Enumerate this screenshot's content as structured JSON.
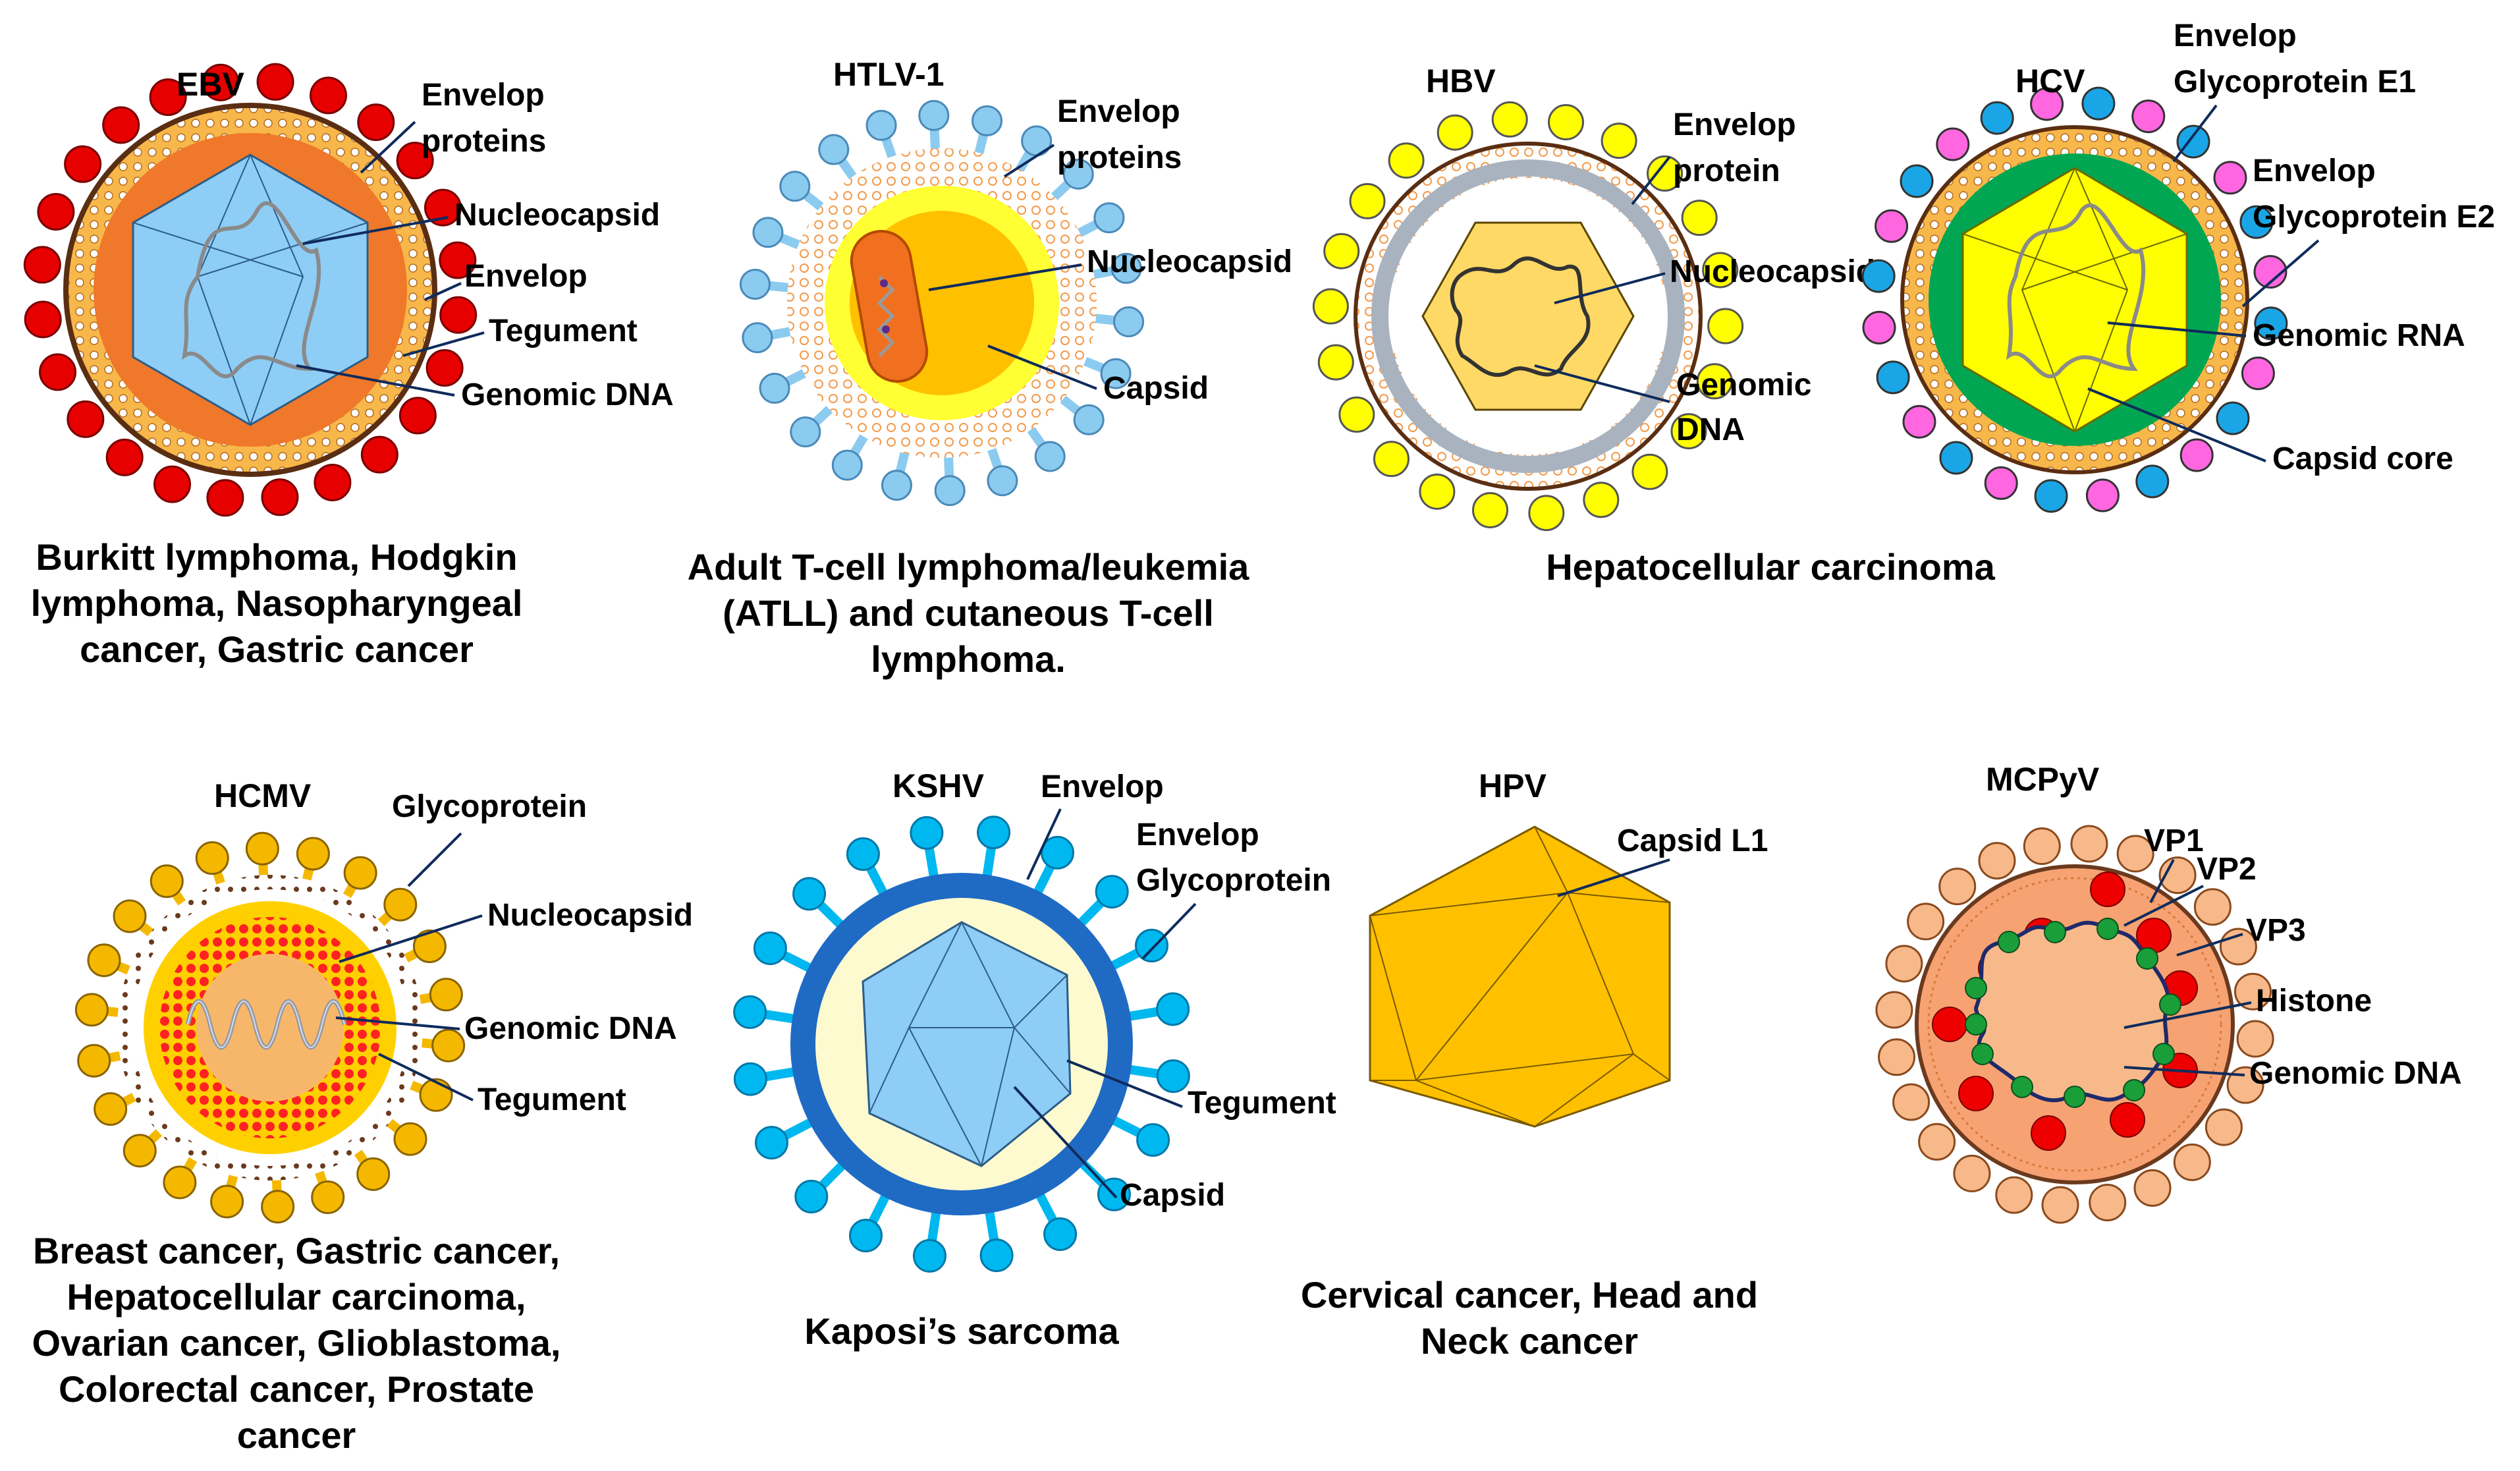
{
  "panels": [
    {
      "key": "ebv",
      "title": "EBV",
      "labels": [
        "Envelop",
        "proteins",
        "Nucleocapsid",
        "Envelop",
        "Tegument",
        "Genomic DNA"
      ],
      "caption": [
        "Burkitt lymphoma, Hodgkin",
        "lymphoma, Nasopharyngeal",
        "cancer, Gastric cancer"
      ]
    },
    {
      "key": "htlv1",
      "title": "HTLV-1",
      "labels": [
        "Envelop",
        "proteins",
        "Nucleocapsid",
        "Capsid"
      ],
      "caption": [
        "Adult T-cell lymphoma/leukemia",
        "(ATLL) and cutaneous T-cell",
        "lymphoma."
      ]
    },
    {
      "key": "hbv",
      "title": "HBV",
      "labels": [
        "Envelop",
        "protein",
        "Nucleocapsid",
        "Genomic",
        "DNA"
      ],
      "caption": [
        "Hepatocellular carcinoma"
      ]
    },
    {
      "key": "hcv",
      "title": "HCV",
      "labels": [
        "Envelop",
        "Glycoprotein E1",
        "Envelop",
        "Glycoprotein E2",
        "Genomic RNA",
        "Capsid core"
      ],
      "caption": []
    },
    {
      "key": "hcmv",
      "title": "HCMV",
      "labels": [
        "Glycoprotein",
        "Nucleocapsid",
        "Genomic DNA",
        "Tegument"
      ],
      "caption": [
        "Breast cancer, Gastric cancer,",
        "Hepatocellular carcinoma,",
        "Ovarian cancer, Glioblastoma,",
        "Colorectal cancer, Prostate",
        "cancer"
      ]
    },
    {
      "key": "kshv",
      "title": "KSHV",
      "labels": [
        "Envelop",
        "Envelop",
        "Glycoprotein",
        "Tegument",
        "Capsid"
      ],
      "caption": [
        "Kaposi’s sarcoma"
      ]
    },
    {
      "key": "hpv",
      "title": "HPV",
      "labels": [
        "Capsid L1"
      ],
      "caption": [
        "Cervical cancer, Head and",
        "Neck cancer"
      ]
    },
    {
      "key": "mcpyv",
      "title": "MCPyV",
      "labels": [
        "VP1",
        "VP2",
        "VP3",
        "Histone",
        "Genomic DNA"
      ],
      "caption": []
    }
  ],
  "colors": {
    "ebv_spikes": "#e60000",
    "ebv_envelope": "#f7b74a",
    "ebv_tegument": "#f0782a",
    "nucleocapsid_blue": "#8ecdf5",
    "htlv_spikes": "#8ccbf0",
    "htlv_capsid": "#ffff33",
    "hbv_spikes": "#ffff00",
    "hbv_ring": "#a9b3bf",
    "hbv_core": "#ffd966",
    "hcv_e1": "#ff66e0",
    "hcv_e2": "#1aa6e6",
    "hcv_core": "#00a651",
    "hcmv_spikes": "#f5b800",
    "hcmv_dots": "#ff2222",
    "kshv_ring": "#1f6bc4",
    "kshv_spikes": "#00b8f0",
    "hpv_capsid": "#ffc000",
    "mcpyv_body": "#f7a272",
    "mcpyv_vp1": "#ee0000",
    "mcpyv_histone": "#1a9e3a",
    "leader": "#0f2b5c"
  }
}
